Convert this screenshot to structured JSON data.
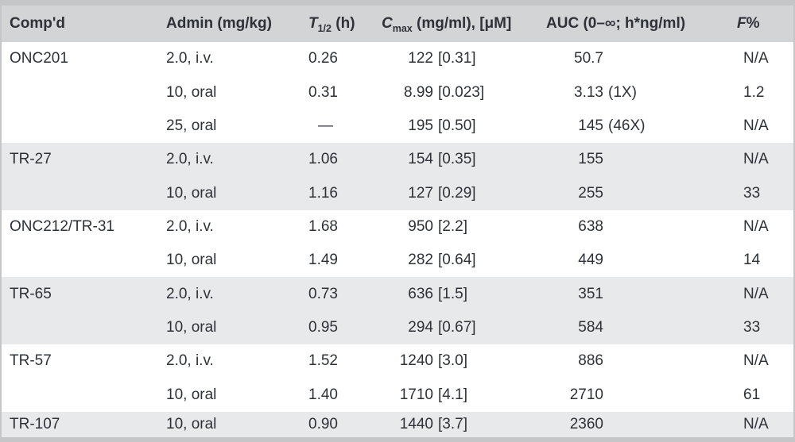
{
  "table": {
    "header": {
      "compound": "Comp'd",
      "admin": "Admin (mg/kg)",
      "t_half_main": "T",
      "t_half_sub": "1/2",
      "t_half_rest": " (h)",
      "cmax_main": "C",
      "cmax_sub": "max",
      "cmax_rest": " (mg/ml), [μM]",
      "auc": "AUC (0–∞; h*ng/ml)",
      "f_main": "F",
      "f_rest": "%"
    },
    "rows": [
      {
        "compound": "ONC201",
        "admin": "2.0, i.v.",
        "t_half": "0.26",
        "cmax": "122",
        "cmax_um": "[0.31]",
        "auc": "50.7",
        "auc_note": "",
        "f": "N/A"
      },
      {
        "compound": "",
        "admin": "10, oral",
        "t_half": "0.31",
        "cmax": "8.99",
        "cmax_um": "[0.023]",
        "auc": "3.13",
        "auc_note": "(1X)",
        "f": "1.2"
      },
      {
        "compound": "",
        "admin": "25, oral",
        "t_half": "—",
        "cmax": "195",
        "cmax_um": "[0.50]",
        "auc": "145",
        "auc_note": "(46X)",
        "f": "N/A"
      },
      {
        "compound": "TR-27",
        "admin": "2.0, i.v.",
        "t_half": "1.06",
        "cmax": "154",
        "cmax_um": "[0.35]",
        "auc": "155",
        "auc_note": "",
        "f": "N/A"
      },
      {
        "compound": "",
        "admin": "10, oral",
        "t_half": "1.16",
        "cmax": "127",
        "cmax_um": "[0.29]",
        "auc": "255",
        "auc_note": "",
        "f": "33"
      },
      {
        "compound": "ONC212/TR-31",
        "admin": "2.0, i.v.",
        "t_half": "1.68",
        "cmax": "950",
        "cmax_um": "[2.2]",
        "auc": "638",
        "auc_note": "",
        "f": "N/A"
      },
      {
        "compound": "",
        "admin": "10, oral",
        "t_half": "1.49",
        "cmax": "282",
        "cmax_um": "[0.64]",
        "auc": "449",
        "auc_note": "",
        "f": "14"
      },
      {
        "compound": "TR-65",
        "admin": "2.0, i.v.",
        "t_half": "0.73",
        "cmax": "636",
        "cmax_um": "[1.5]",
        "auc": "351",
        "auc_note": "",
        "f": "N/A"
      },
      {
        "compound": "",
        "admin": "10, oral",
        "t_half": "0.95",
        "cmax": "294",
        "cmax_um": "[0.67]",
        "auc": "584",
        "auc_note": "",
        "f": "33"
      },
      {
        "compound": "TR-57",
        "admin": "2.0, i.v.",
        "t_half": "1.52",
        "cmax": "1240",
        "cmax_um": "[3.0]",
        "auc": "886",
        "auc_note": "",
        "f": "N/A"
      },
      {
        "compound": "",
        "admin": "10, oral",
        "t_half": "1.40",
        "cmax": "1710",
        "cmax_um": "[4.1]",
        "auc": "2710",
        "auc_note": "",
        "f": "61"
      },
      {
        "compound": "TR-107",
        "admin": "10, oral",
        "t_half": "0.90",
        "cmax": "1440",
        "cmax_um": "[3.7]",
        "auc": "2360",
        "auc_note": "",
        "f": "N/A"
      }
    ],
    "colors": {
      "header_bg": "#d3d4d6",
      "shaded_row_bg": "#e8e9ea",
      "frame": "#c5c6c8",
      "text": "#2e3238"
    }
  }
}
